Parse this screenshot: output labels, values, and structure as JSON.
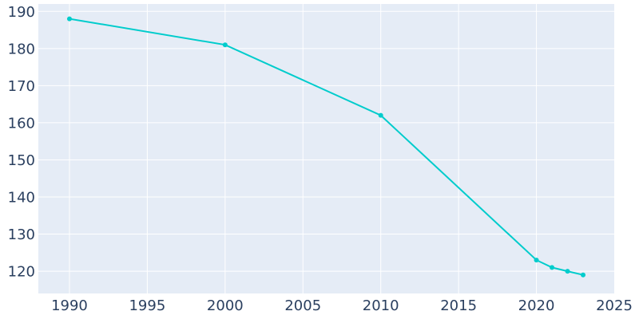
{
  "chart_data": {
    "type": "line",
    "title": "",
    "xlabel": "",
    "ylabel": "",
    "x": [
      1990,
      2000,
      2010,
      2020,
      2021,
      2022,
      2023
    ],
    "series": [
      {
        "values": [
          188,
          181,
          162,
          123,
          121,
          120,
          119
        ]
      }
    ],
    "xlim": [
      1988,
      2025
    ],
    "ylim": [
      114,
      192
    ],
    "xticks": [
      1990,
      1995,
      2000,
      2005,
      2010,
      2015,
      2020,
      2025
    ],
    "yticks": [
      120,
      130,
      140,
      150,
      160,
      170,
      180,
      190
    ],
    "grid": true,
    "legend": "none",
    "colors": {
      "line": "#00cccc",
      "plot_bg": "#e5ecf6",
      "grid": "#ffffff",
      "text": "#2a3f5f"
    }
  }
}
